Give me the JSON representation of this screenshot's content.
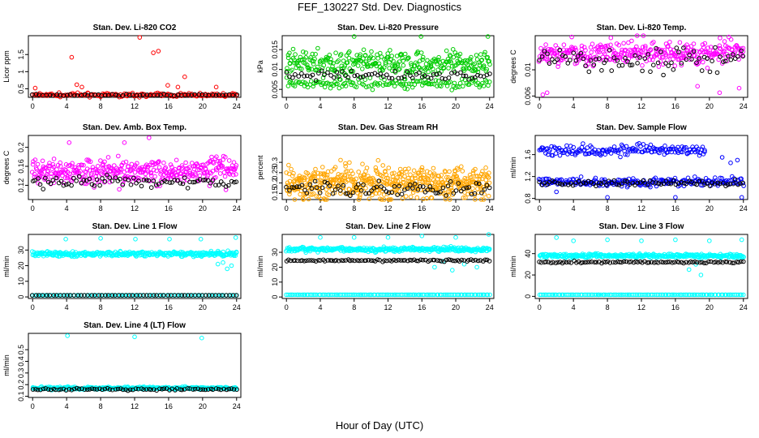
{
  "figure": {
    "title": "FEF_130227  Std. Dev. Diagnostics",
    "xlabel": "Hour of Day (UTC)"
  },
  "chart_data": [
    {
      "type": "scatter",
      "title": "Stan. Dev. Li-820 CO2",
      "ylabel": "Licor ppm",
      "xticks": [
        0,
        4,
        8,
        12,
        16,
        20,
        24
      ],
      "xlim": [
        -0.5,
        24.5
      ],
      "yticks": [
        0.5,
        1.0,
        1.5
      ],
      "ylim": [
        0.25,
        2.05
      ],
      "series": [
        {
          "color": "#ff0000",
          "base": 0.32,
          "spread": 0.05,
          "count": 150,
          "outliers": [
            [
              4.6,
              1.42
            ],
            [
              5.2,
              0.62
            ],
            [
              5.8,
              0.55
            ],
            [
              12.6,
              2.0
            ],
            [
              14.2,
              1.55
            ],
            [
              14.8,
              1.6
            ],
            [
              15.9,
              0.6
            ],
            [
              17.1,
              0.55
            ],
            [
              17.9,
              0.85
            ],
            [
              21.6,
              0.55
            ],
            [
              0.3,
              0.52
            ]
          ]
        },
        {
          "color": "#000000",
          "base": 0.32,
          "spread": 0.02,
          "count": 60
        }
      ]
    },
    {
      "type": "scatter",
      "title": "Stan. Dev. Li-820 Pressure",
      "ylabel": "kPa",
      "xticks": [
        0,
        4,
        8,
        12,
        16,
        20,
        24
      ],
      "xlim": [
        -0.5,
        24.5
      ],
      "yticks": [
        0.005,
        0.01,
        0.015
      ],
      "ylim": [
        0.003,
        0.0185
      ],
      "series": [
        {
          "color": "#00cc00",
          "base": 0.0115,
          "spread": 0.0032,
          "count": 320,
          "outliers": [
            [
              8.0,
              0.0183
            ],
            [
              15.9,
              0.0183
            ],
            [
              23.8,
              0.0183
            ]
          ]
        },
        {
          "color": "#00cc00",
          "base": 0.0065,
          "spread": 0.0012,
          "count": 140
        },
        {
          "color": "#000000",
          "base": 0.0085,
          "spread": 0.0012,
          "count": 70
        }
      ]
    },
    {
      "type": "scatter",
      "title": "Stan. Dev. Li-820 Temp.",
      "ylabel": "degrees C",
      "xticks": [
        0,
        4,
        8,
        12,
        16,
        20,
        24
      ],
      "xlim": [
        -0.5,
        24.5
      ],
      "yticks": [
        0.006,
        0.01
      ],
      "ylim": [
        0.0058,
        0.0152
      ],
      "series": [
        {
          "color": "#ff00ff",
          "base": 0.0125,
          "spread": 0.0018,
          "count": 330,
          "outliers": [
            [
              0.4,
              0.0062
            ],
            [
              0.9,
              0.0065
            ],
            [
              18.6,
              0.0075
            ],
            [
              21.2,
              0.0065
            ],
            [
              23.5,
              0.0072
            ]
          ]
        },
        {
          "color": "#000000",
          "base": 0.0115,
          "spread": 0.0018,
          "count": 80
        }
      ]
    },
    {
      "type": "scatter",
      "title": "Stan. Dev. Amb. Box Temp.",
      "ylabel": "degrees C",
      "xticks": [
        0,
        4,
        8,
        12,
        16,
        20,
        24
      ],
      "xlim": [
        -0.5,
        24.5
      ],
      "yticks": [
        0.12,
        0.16,
        0.2
      ],
      "ylim": [
        0.09,
        0.225
      ],
      "series": [
        {
          "color": "#ff00ff",
          "base": 0.15,
          "spread": 0.028,
          "count": 380,
          "outliers": [
            [
              13.7,
              0.22
            ],
            [
              4.3,
              0.21
            ],
            [
              10.8,
              0.21
            ]
          ]
        },
        {
          "color": "#000000",
          "base": 0.128,
          "spread": 0.012,
          "count": 80
        }
      ]
    },
    {
      "type": "scatter",
      "title": "Stan. Dev. Gas Stream RH",
      "ylabel": "percent",
      "xticks": [
        0,
        4,
        8,
        12,
        16,
        20,
        24
      ],
      "xlim": [
        -0.5,
        24.5
      ],
      "yticks": [
        0.15,
        0.2,
        0.25,
        0.3
      ],
      "ylim": [
        0.12,
        0.43
      ],
      "series": [
        {
          "color": "#ffa500",
          "base": 0.2,
          "spread": 0.08,
          "count": 520
        },
        {
          "color": "#000000",
          "base": 0.175,
          "spread": 0.035,
          "count": 80
        }
      ]
    },
    {
      "type": "scatter",
      "title": "Stan. Dev. Sample Flow",
      "ylabel": "ml/min",
      "xticks": [
        0,
        4,
        8,
        12,
        16,
        20,
        24
      ],
      "xlim": [
        -0.5,
        24.5
      ],
      "yticks": [
        0.8,
        1.2,
        1.6
      ],
      "ylim": [
        0.78,
        1.95
      ],
      "series": [
        {
          "color": "#0000ff",
          "base": 1.68,
          "spread": 0.1,
          "count": 170,
          "xmax": 19.5,
          "outliers": [
            [
              21.5,
              1.55
            ],
            [
              22.5,
              1.45
            ],
            [
              23.3,
              1.5
            ]
          ]
        },
        {
          "color": "#0000ff",
          "base": 1.1,
          "spread": 0.08,
          "count": 220,
          "outliers": [
            [
              2.0,
              0.92
            ],
            [
              8.0,
              0.82
            ],
            [
              16.0,
              0.82
            ],
            [
              23.8,
              0.82
            ]
          ]
        },
        {
          "color": "#000000",
          "base": 1.08,
          "spread": 0.05,
          "count": 80
        }
      ]
    },
    {
      "type": "scatter",
      "title": "Stan. Dev. Line 1 Flow",
      "ylabel": "ml/min",
      "xticks": [
        0,
        4,
        8,
        12,
        16,
        20,
        24
      ],
      "xlim": [
        -0.5,
        24.5
      ],
      "yticks": [
        0,
        10,
        20,
        30
      ],
      "ylim": [
        -1,
        40
      ],
      "series": [
        {
          "color": "#00ffff",
          "base": 27.5,
          "spread": 1.5,
          "count": 360,
          "outliers": [
            [
              3.9,
              37
            ],
            [
              8.0,
              37.5
            ],
            [
              12.1,
              37
            ],
            [
              16.1,
              37
            ],
            [
              19.8,
              37
            ],
            [
              23.9,
              38
            ],
            [
              23.4,
              20
            ],
            [
              22.9,
              18
            ],
            [
              21.8,
              21
            ],
            [
              22.4,
              22
            ]
          ]
        },
        {
          "color": "#00ffff",
          "base": 1.0,
          "spread": 0.0,
          "count": 80
        },
        {
          "color": "#000000",
          "base": 1.0,
          "spread": 0.0,
          "count": 60
        }
      ]
    },
    {
      "type": "scatter",
      "title": "Stan. Dev. Line 2 Flow",
      "ylabel": "ml/min",
      "xticks": [
        0,
        4,
        8,
        12,
        16,
        20,
        24
      ],
      "xlim": [
        -0.5,
        24.5
      ],
      "yticks": [
        0,
        10,
        20,
        30
      ],
      "ylim": [
        -1,
        42
      ],
      "series": [
        {
          "color": "#00ffff",
          "base": 32,
          "spread": 1.5,
          "count": 330,
          "outliers": [
            [
              4.0,
              40
            ],
            [
              8.0,
              40
            ],
            [
              12.0,
              40
            ],
            [
              16.0,
              41
            ],
            [
              20.0,
              40
            ],
            [
              23.9,
              42
            ],
            [
              17.5,
              20
            ],
            [
              18.5,
              24
            ],
            [
              19.6,
              18
            ],
            [
              21.0,
              22
            ],
            [
              22.5,
              20
            ]
          ]
        },
        {
          "color": "#000000",
          "base": 24.5,
          "spread": 0.6,
          "count": 90
        },
        {
          "color": "#00ffff",
          "base": 1.5,
          "spread": 0.0,
          "count": 120
        }
      ]
    },
    {
      "type": "scatter",
      "title": "Stan. Dev. Line 3 Flow",
      "ylabel": "ml/min",
      "xticks": [
        0,
        4,
        8,
        12,
        16,
        20,
        24
      ],
      "xlim": [
        -0.5,
        24.5
      ],
      "yticks": [
        0,
        20,
        40
      ],
      "ylim": [
        -2,
        58
      ],
      "series": [
        {
          "color": "#00ffff",
          "base": 38,
          "spread": 1.8,
          "count": 330,
          "outliers": [
            [
              2.0,
              55
            ],
            [
              4.0,
              52
            ],
            [
              8.0,
              53
            ],
            [
              12.0,
              52
            ],
            [
              16.0,
              53
            ],
            [
              20.0,
              52
            ],
            [
              23.8,
              53
            ],
            [
              17.6,
              25
            ],
            [
              18.4,
              30
            ],
            [
              19.0,
              20
            ]
          ]
        },
        {
          "color": "#000000",
          "base": 32,
          "spread": 0.8,
          "count": 90
        },
        {
          "color": "#00ffff",
          "base": 1.5,
          "spread": 0.0,
          "count": 120
        }
      ]
    },
    {
      "type": "scatter",
      "title": "Stan. Dev. Line 4 (LT) Flow",
      "ylabel": "ml/min",
      "xticks": [
        0,
        4,
        8,
        12,
        16,
        20,
        24
      ],
      "xlim": [
        -0.5,
        24.5
      ],
      "yticks": [
        0.1,
        0.2,
        0.3,
        0.4,
        0.5
      ],
      "ylim": [
        0.09,
        0.64
      ],
      "series": [
        {
          "color": "#00ffff",
          "base": 0.17,
          "spread": 0.012,
          "count": 300,
          "outliers": [
            [
              4.1,
              0.62
            ],
            [
              12.0,
              0.61
            ],
            [
              19.9,
              0.6
            ]
          ]
        },
        {
          "color": "#000000",
          "base": 0.16,
          "spread": 0.01,
          "count": 80
        }
      ]
    }
  ]
}
